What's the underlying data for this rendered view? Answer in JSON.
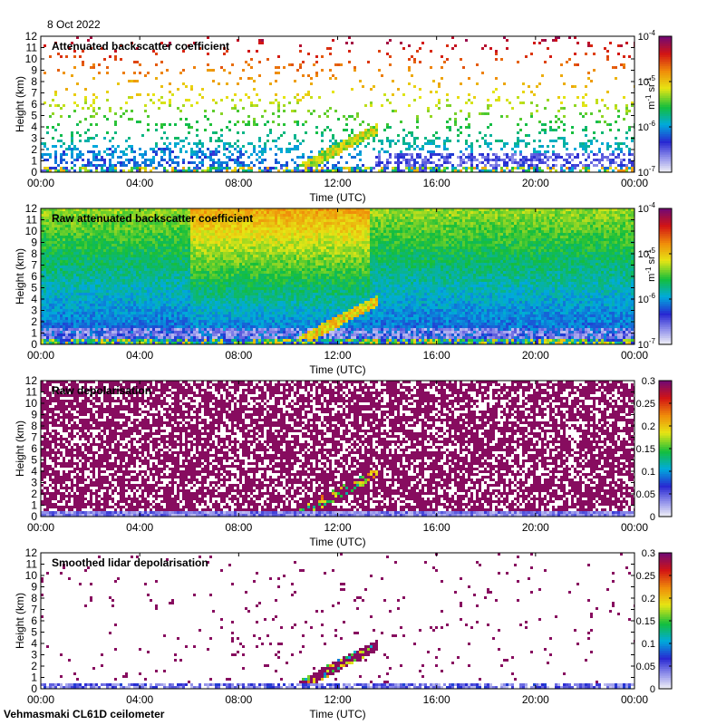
{
  "date": "8 Oct 2022",
  "footer": "Vehmasmaki CL61D ceilometer",
  "chart_data": [
    {
      "type": "heatmap",
      "title": "Attenuated backscatter coefficient",
      "xlabel": "Time (UTC)",
      "ylabel": "Height (km)",
      "xticks": [
        "00:00",
        "04:00",
        "08:00",
        "12:00",
        "16:00",
        "20:00",
        "00:00"
      ],
      "yticks": [
        "0",
        "1",
        "2",
        "3",
        "4",
        "5",
        "6",
        "7",
        "8",
        "9",
        "10",
        "11",
        "12"
      ],
      "ylim": [
        0,
        12
      ],
      "colorbar": {
        "scale": "log",
        "ticks": [
          "10-7",
          "10-6",
          "10-5",
          "10-4"
        ],
        "label": "m-1 sr-1"
      },
      "pattern": "sparse"
    },
    {
      "type": "heatmap",
      "title": "Raw attenuated backscatter coefficient",
      "xlabel": "Time (UTC)",
      "ylabel": "Height (km)",
      "xticks": [
        "00:00",
        "04:00",
        "08:00",
        "12:00",
        "16:00",
        "20:00",
        "00:00"
      ],
      "yticks": [
        "0",
        "1",
        "2",
        "3",
        "4",
        "5",
        "6",
        "7",
        "8",
        "9",
        "10",
        "11",
        "12"
      ],
      "ylim": [
        0,
        12
      ],
      "colorbar": {
        "scale": "log",
        "ticks": [
          "10-7",
          "10-6",
          "10-5",
          "10-4"
        ],
        "label": "m-1 sr-1"
      },
      "pattern": "dense"
    },
    {
      "type": "heatmap",
      "title": "Raw depolarisation",
      "xlabel": "Time (UTC)",
      "ylabel": "Height (km)",
      "xticks": [
        "00:00",
        "04:00",
        "08:00",
        "12:00",
        "16:00",
        "20:00",
        "00:00"
      ],
      "yticks": [
        "0",
        "1",
        "2",
        "3",
        "4",
        "5",
        "6",
        "7",
        "8",
        "9",
        "10",
        "11",
        "12"
      ],
      "ylim": [
        0,
        12
      ],
      "colorbar": {
        "scale": "linear",
        "ticks": [
          "0",
          "0.05",
          "0.1",
          "0.15",
          "0.2",
          "0.25",
          "0.3"
        ],
        "label": ""
      },
      "pattern": "depol"
    },
    {
      "type": "heatmap",
      "title": "Smoothed lidar depolarisation",
      "xlabel": "Time (UTC)",
      "ylabel": "Height (km)",
      "xticks": [
        "00:00",
        "04:00",
        "08:00",
        "12:00",
        "16:00",
        "20:00",
        "00:00"
      ],
      "yticks": [
        "0",
        "1",
        "2",
        "3",
        "4",
        "5",
        "6",
        "7",
        "8",
        "9",
        "10",
        "11",
        "12"
      ],
      "ylim": [
        0,
        12
      ],
      "colorbar": {
        "scale": "linear",
        "ticks": [
          "0",
          "0.05",
          "0.1",
          "0.15",
          "0.2",
          "0.25",
          "0.3"
        ],
        "label": ""
      },
      "pattern": "smooth"
    }
  ]
}
